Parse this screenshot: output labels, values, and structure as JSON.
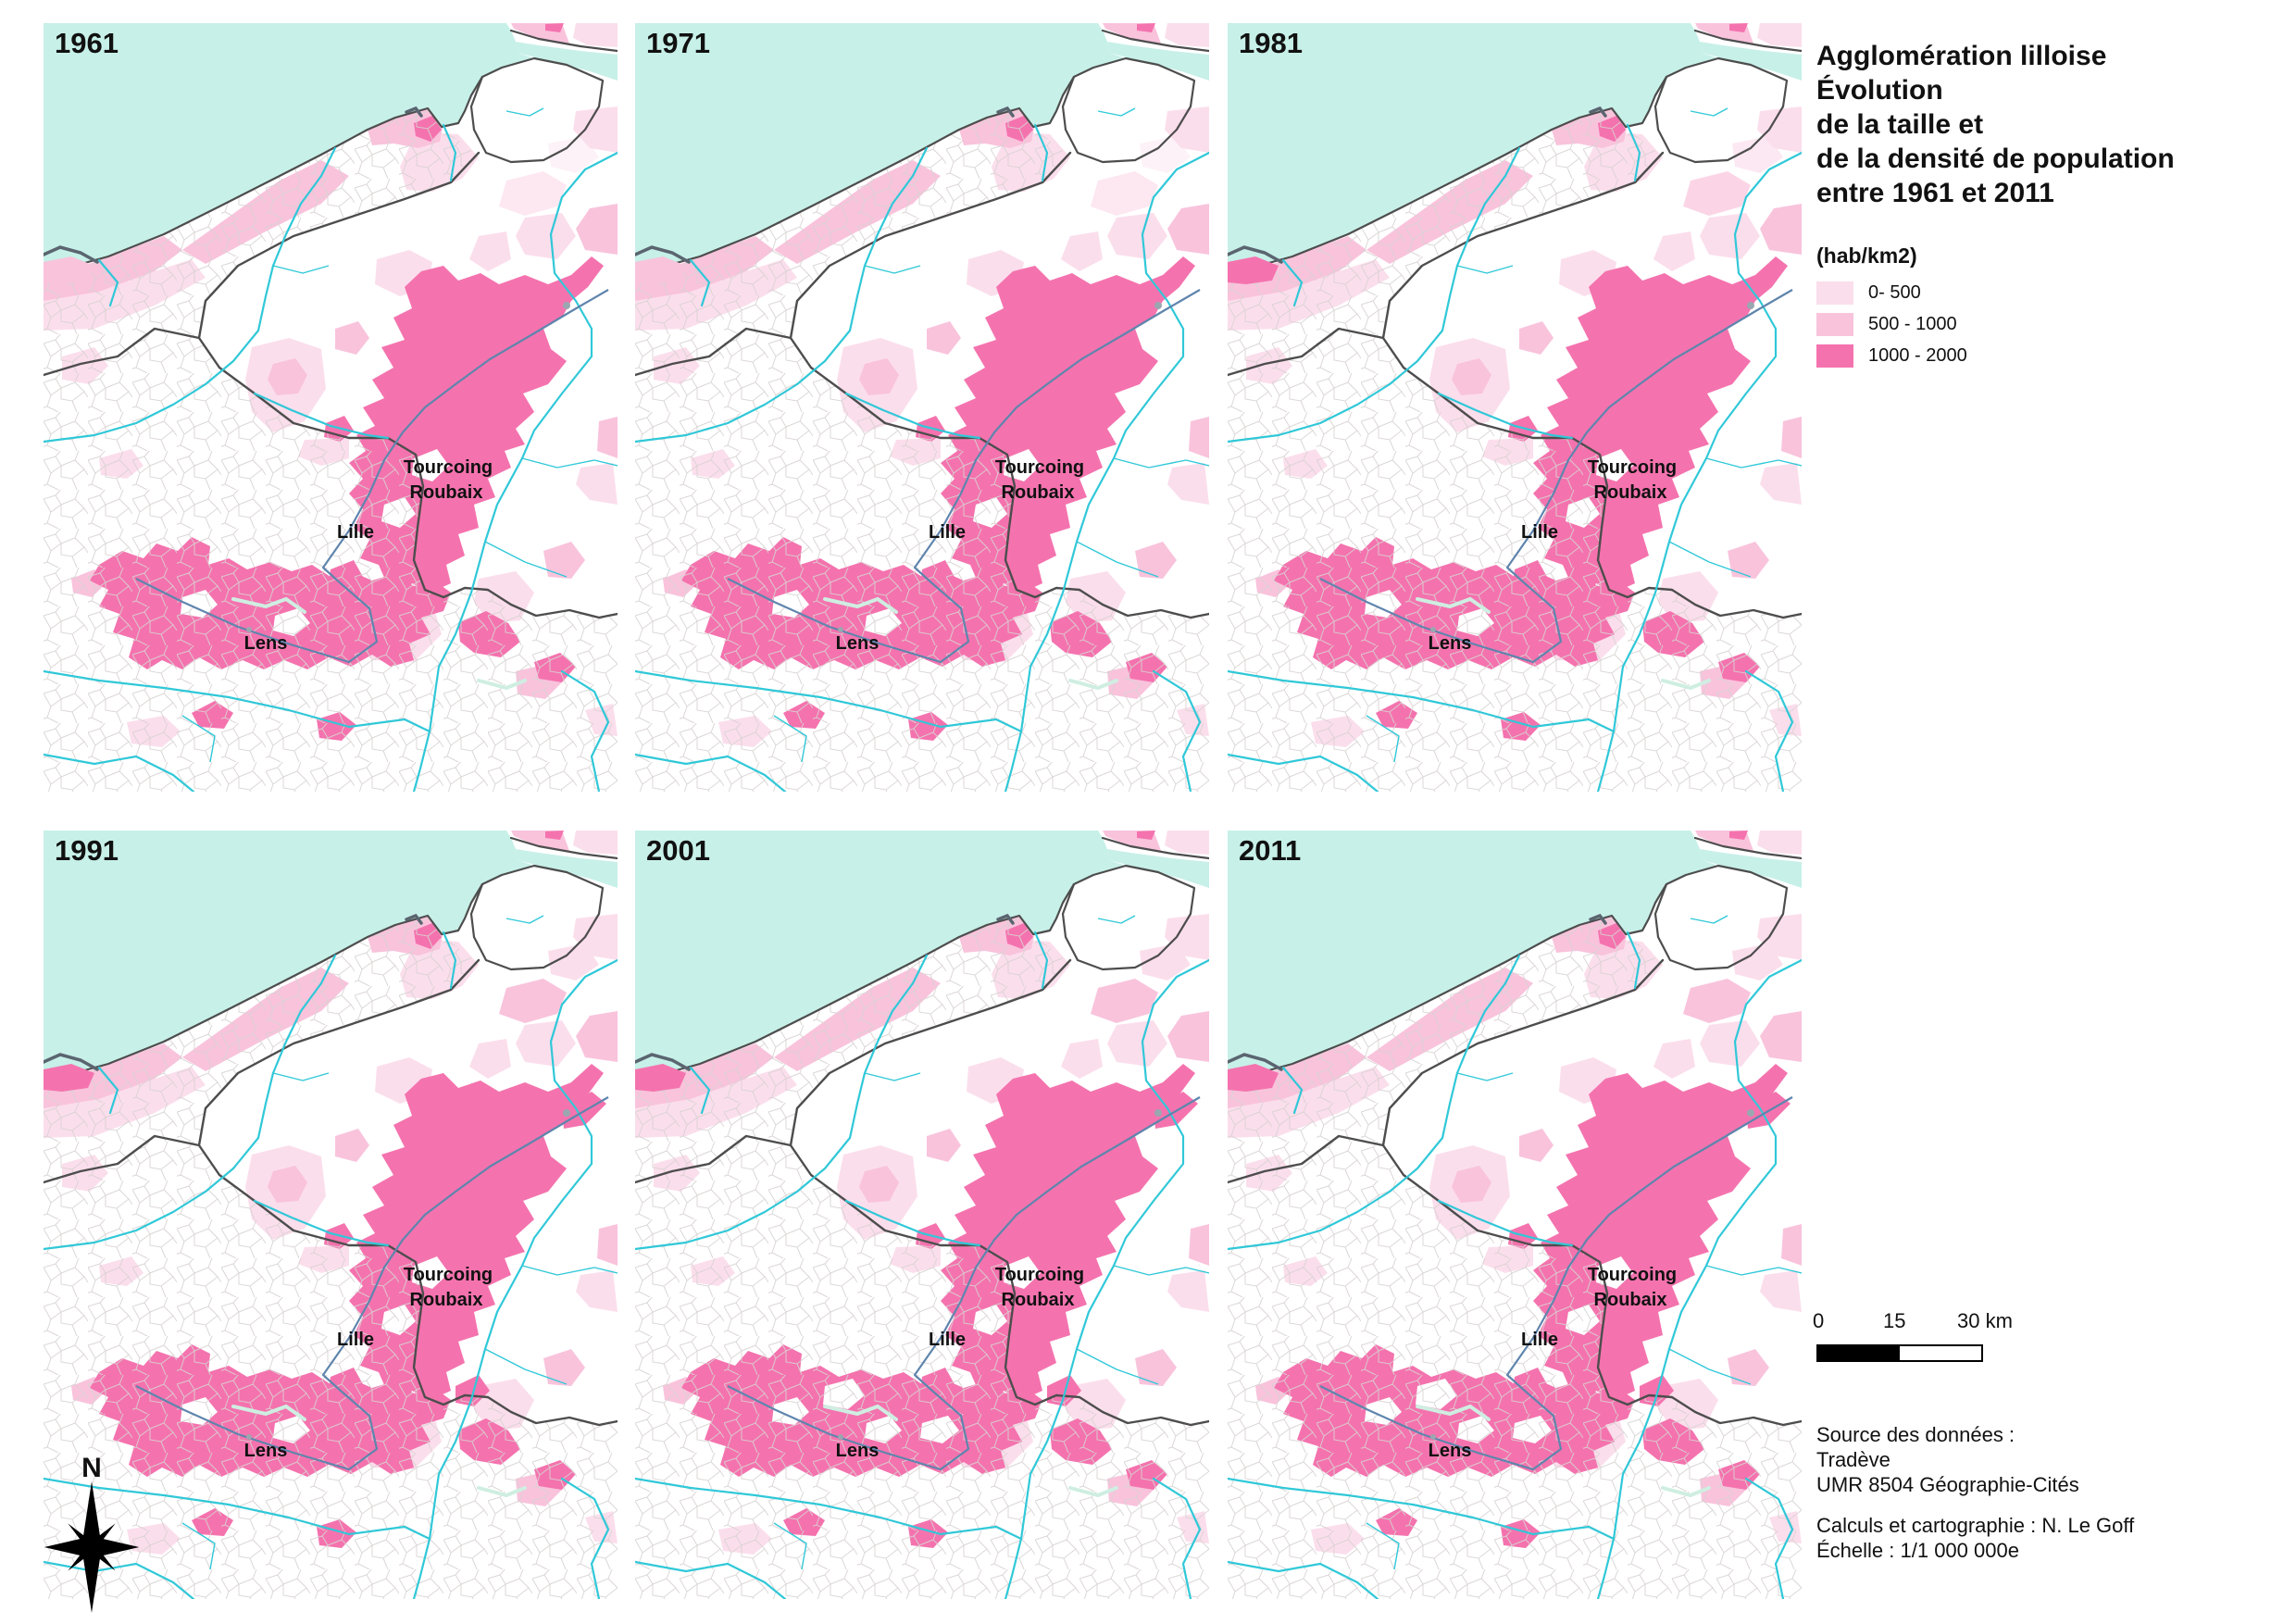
{
  "title": {
    "lines": [
      "Agglomération lilloise",
      "Évolution",
      "de la taille et",
      "de la densité de population",
      "entre 1961 et 2011"
    ]
  },
  "legend": {
    "header": "(hab/km2)",
    "items": [
      {
        "label": "0- 500",
        "color": "#fbdeec"
      },
      {
        "label": "500 - 1000",
        "color": "#f9c3dc"
      },
      {
        "label": "1000 - 2000",
        "color": "#f473ae"
      }
    ]
  },
  "maps": [
    {
      "year": "1961"
    },
    {
      "year": "1971"
    },
    {
      "year": "1981"
    },
    {
      "year": "1991"
    },
    {
      "year": "2001"
    },
    {
      "year": "2011"
    }
  ],
  "city_labels": {
    "tourcoing": "Tourcoing",
    "roubaix": "Roubaix",
    "lille": "Lille",
    "lens": "Lens"
  },
  "scalebar": {
    "tick0": "0",
    "tick15": "15",
    "tick30": "30 km"
  },
  "compass": {
    "label": "N"
  },
  "source": {
    "lines": [
      "Source des données :",
      "Tradève",
      "UMR 8504 Géographie-Cités"
    ],
    "credits": [
      "Calculs et cartographie : N. Le Goff",
      "Échelle : 1/1 000 000e"
    ]
  },
  "colors": {
    "sea": "#c7f0e8",
    "light": "#fbdeec",
    "medium": "#f9c3dc",
    "dark": "#f473ae",
    "border": "#4d4d4d",
    "commune": "#d8d2d2",
    "river": "#30c8d8",
    "canal": "#5f85ad",
    "mint": "#cfeee2"
  }
}
